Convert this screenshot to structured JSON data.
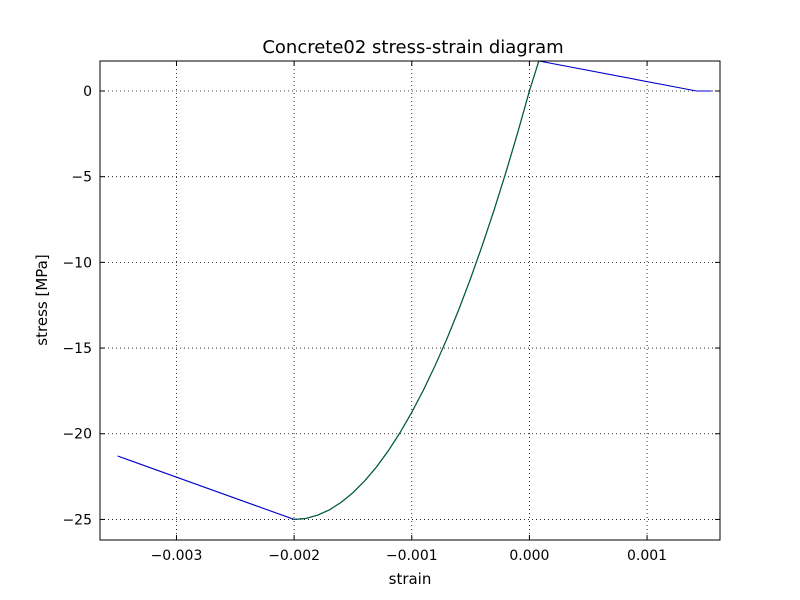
{
  "chart_data": {
    "type": "line",
    "title": "Concrete02 stress-strain diagram",
    "xlabel": "strain",
    "ylabel": "stress [MPa]",
    "xlim": [
      -0.00365,
      0.00162
    ],
    "ylim": [
      -26.2,
      1.75
    ],
    "grid": true,
    "xticks": [
      -0.003,
      -0.002,
      -0.001,
      0.0,
      0.001
    ],
    "xtick_labels": [
      "−0.003",
      "−0.002",
      "−0.001",
      "0.000",
      "0.001"
    ],
    "yticks": [
      0,
      -5,
      -10,
      -15,
      -20,
      -25
    ],
    "ytick_labels": [
      "0",
      "−5",
      "−10",
      "−15",
      "−20",
      "−25"
    ],
    "series": [
      {
        "color": "#0000cc",
        "x": [
          -0.0035,
          -0.002,
          -0.0019,
          -0.0018,
          -0.0017,
          -0.0016,
          -0.0015,
          -0.0014,
          -0.0013,
          -0.0012,
          -0.0011,
          -0.001,
          -0.0009,
          -0.0008,
          -0.0007,
          -0.0006,
          -0.0005,
          -0.0004,
          -0.0003,
          -0.0002,
          -0.0001,
          0.0,
          8e-05,
          0.00142,
          0.00155
        ],
        "y": [
          -21.3,
          -25.0,
          -24.94,
          -24.75,
          -24.44,
          -24.0,
          -23.44,
          -22.75,
          -21.94,
          -21.0,
          -19.94,
          -18.75,
          -17.44,
          -16.0,
          -14.44,
          -12.75,
          -10.94,
          -9.0,
          -6.94,
          -4.75,
          -2.44,
          0.0,
          1.75,
          0.0,
          0.0
        ]
      },
      {
        "color": "#006633",
        "x": [
          -0.002,
          -0.0019,
          -0.0018,
          -0.0017,
          -0.0016,
          -0.0015,
          -0.0014,
          -0.0013,
          -0.0012,
          -0.0011,
          -0.001,
          -0.0009,
          -0.0008,
          -0.0007,
          -0.0006,
          -0.0005,
          -0.0004,
          -0.0003,
          -0.0002,
          -0.0001,
          0.0,
          8e-05
        ],
        "y": [
          -25.0,
          -24.94,
          -24.75,
          -24.44,
          -24.0,
          -23.44,
          -22.75,
          -21.94,
          -21.0,
          -19.94,
          -18.75,
          -17.44,
          -16.0,
          -14.44,
          -12.75,
          -10.94,
          -9.0,
          -6.94,
          -4.75,
          -2.44,
          0.0,
          1.75
        ]
      }
    ]
  }
}
